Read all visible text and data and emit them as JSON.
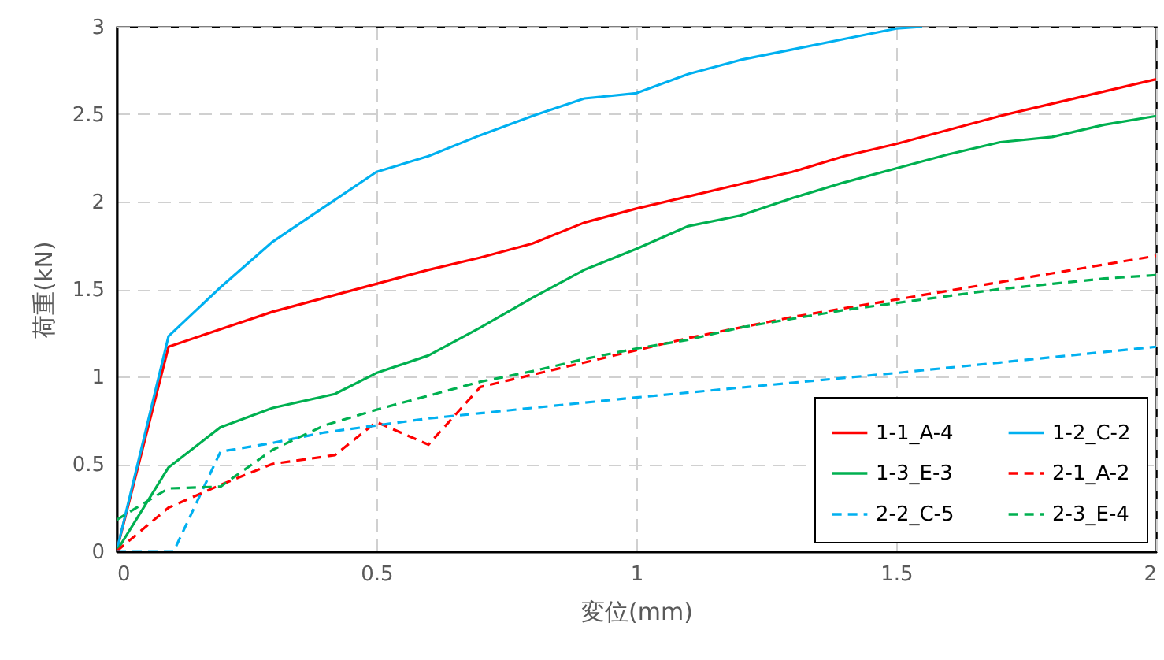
{
  "chart_data": {
    "type": "line",
    "xlabel": "変位(mm)",
    "ylabel": "荷重(kN)",
    "xlim": [
      0,
      2
    ],
    "ylim": [
      0,
      3
    ],
    "xticks": [
      0,
      0.5,
      1,
      1.5,
      2
    ],
    "yticks": [
      0,
      0.5,
      1,
      1.5,
      2,
      2.5,
      3
    ],
    "grid": true,
    "legend": "bottom right",
    "marker": "none",
    "series": [
      {
        "name": "1-1_A-4",
        "color": "#ff0000",
        "line_style": "solid",
        "x": [
          0,
          0.1,
          0.2,
          0.3,
          0.4,
          0.5,
          0.6,
          0.7,
          0.8,
          0.9,
          1,
          1.1,
          1.2,
          1.3,
          1.4,
          1.5,
          1.6,
          1.7,
          1.8,
          1.9,
          2
        ],
        "values": [
          0,
          1.17,
          1.27,
          1.37,
          1.45,
          1.53,
          1.61,
          1.68,
          1.76,
          1.88,
          1.96,
          2.03,
          2.1,
          2.17,
          2.26,
          2.33,
          2.41,
          2.49,
          2.56,
          2.63,
          2.7
        ]
      },
      {
        "name": "1-2_C-2",
        "color": "#00b0f0",
        "line_style": "solid",
        "x": [
          0,
          0.1,
          0.2,
          0.3,
          0.4,
          0.5,
          0.6,
          0.7,
          0.8,
          0.9,
          1,
          1.1,
          1.2,
          1.3,
          1.4,
          1.5,
          1.55
        ],
        "values": [
          0,
          1.23,
          1.51,
          1.77,
          1.97,
          2.17,
          2.26,
          2.38,
          2.49,
          2.59,
          2.62,
          2.73,
          2.81,
          2.87,
          2.93,
          2.99,
          3.0
        ]
      },
      {
        "name": "1-3_E-3",
        "color": "#00b050",
        "line_style": "solid",
        "x": [
          0,
          0.1,
          0.2,
          0.3,
          0.42,
          0.5,
          0.6,
          0.7,
          0.8,
          0.9,
          1,
          1.1,
          1.2,
          1.3,
          1.4,
          1.5,
          1.6,
          1.7,
          1.8,
          1.9,
          2
        ],
        "values": [
          0,
          0.48,
          0.71,
          0.82,
          0.9,
          1.02,
          1.12,
          1.28,
          1.45,
          1.61,
          1.73,
          1.86,
          1.92,
          2.02,
          2.11,
          2.19,
          2.27,
          2.34,
          2.37,
          2.44,
          2.49
        ]
      },
      {
        "name": "2-1_A-2",
        "color": "#ff0000",
        "line_style": "dashed",
        "x": [
          0,
          0.1,
          0.2,
          0.3,
          0.42,
          0.5,
          0.6,
          0.7,
          0.8,
          0.9,
          1,
          1.1,
          1.2,
          1.3,
          1.4,
          1.5,
          1.6,
          1.7,
          1.8,
          1.9,
          2
        ],
        "values": [
          0,
          0.25,
          0.38,
          0.5,
          0.55,
          0.74,
          0.61,
          0.94,
          1.01,
          1.08,
          1.15,
          1.22,
          1.28,
          1.34,
          1.39,
          1.44,
          1.49,
          1.54,
          1.59,
          1.64,
          1.69
        ]
      },
      {
        "name": "2-2_C-5",
        "color": "#00b0f0",
        "line_style": "dashed",
        "x": [
          0,
          0.11,
          0.2,
          0.3,
          0.4,
          0.5,
          0.6,
          0.7,
          1,
          1.5,
          2
        ],
        "values": [
          0,
          0,
          0.57,
          0.62,
          0.68,
          0.72,
          0.76,
          0.79,
          0.88,
          1.02,
          1.17
        ]
      },
      {
        "name": "2-3_E-4",
        "color": "#00b050",
        "line_style": "dashed",
        "x": [
          0,
          0.1,
          0.2,
          0.3,
          0.4,
          0.5,
          0.6,
          0.7,
          0.8,
          0.9,
          1,
          1.1,
          1.2,
          1.3,
          1.4,
          1.5,
          1.6,
          1.7,
          1.8,
          1.9,
          2
        ],
        "values": [
          0.18,
          0.36,
          0.37,
          0.58,
          0.72,
          0.81,
          0.89,
          0.97,
          1.03,
          1.1,
          1.16,
          1.21,
          1.28,
          1.33,
          1.38,
          1.42,
          1.46,
          1.5,
          1.53,
          1.56,
          1.58
        ]
      }
    ]
  }
}
